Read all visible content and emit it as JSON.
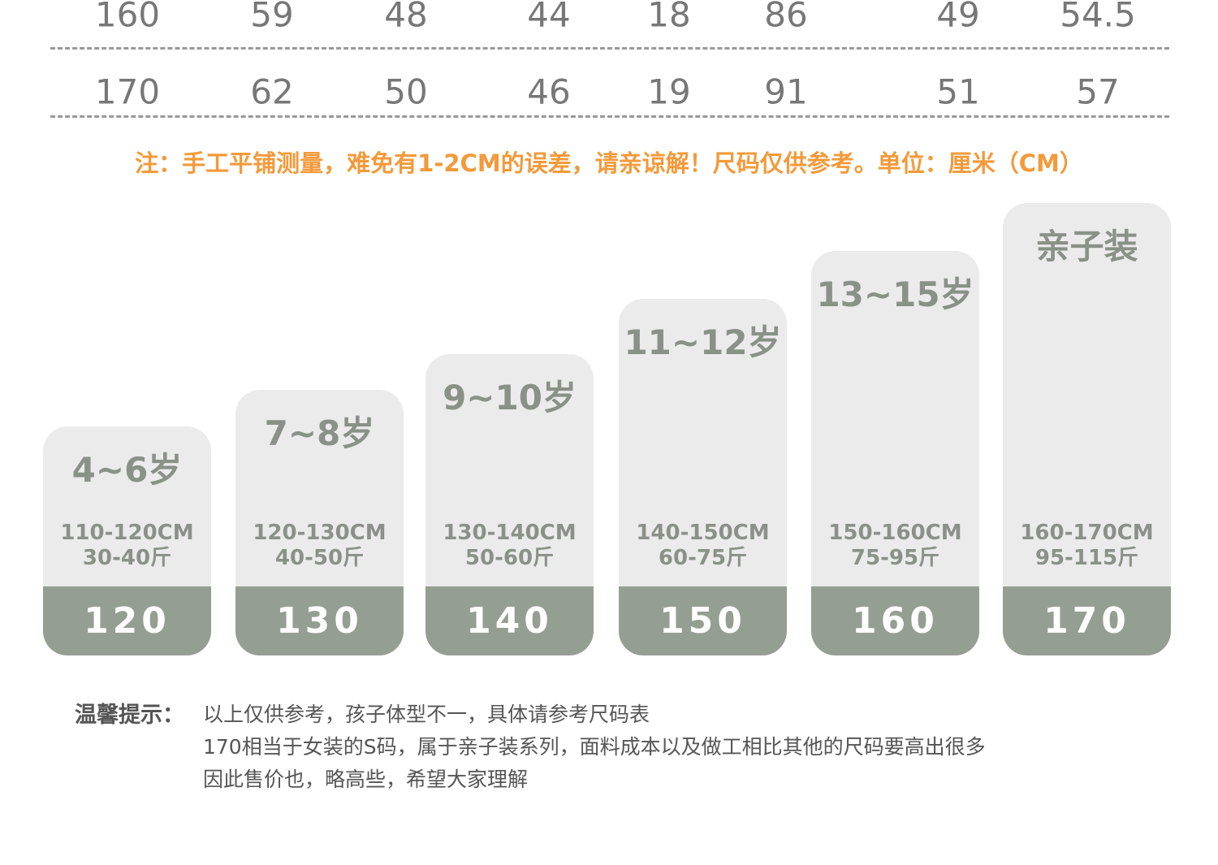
{
  "table": {
    "rows": [
      [
        "160",
        "59",
        "48",
        "44",
        "18",
        "86",
        "49",
        "54.5"
      ],
      [
        "170",
        "62",
        "50",
        "46",
        "19",
        "91",
        "51",
        "57"
      ]
    ]
  },
  "note": "注：手工平铺测量，难免有1-2CM的误差，请亲谅解！尺码仅供参考。单位：厘米（CM）",
  "cards": [
    {
      "age": "4~6岁",
      "height": "110-120CM",
      "weight": "30-40斤",
      "size": "120"
    },
    {
      "age": "7~8岁",
      "height": "120-130CM",
      "weight": "40-50斤",
      "size": "130"
    },
    {
      "age": "9~10岁",
      "height": "130-140CM",
      "weight": "50-60斤",
      "size": "140"
    },
    {
      "age": "11~12岁",
      "height": "140-150CM",
      "weight": "60-75斤",
      "size": "150"
    },
    {
      "age": "13~15岁",
      "height": "150-160CM",
      "weight": "75-95斤",
      "size": "160"
    },
    {
      "age": "亲子装",
      "height": "160-170CM",
      "weight": "95-115斤",
      "size": "170"
    }
  ],
  "tip": {
    "label": "温馨提示：",
    "lines": [
      "以上仅供参考，孩子体型不一，具体请参考尺码表",
      "170相当于女装的S码，属于亲子装系列，面料成本以及做工相比其他的尺码要高出很多",
      "因此售价也，略高些，希望大家理解"
    ]
  }
}
